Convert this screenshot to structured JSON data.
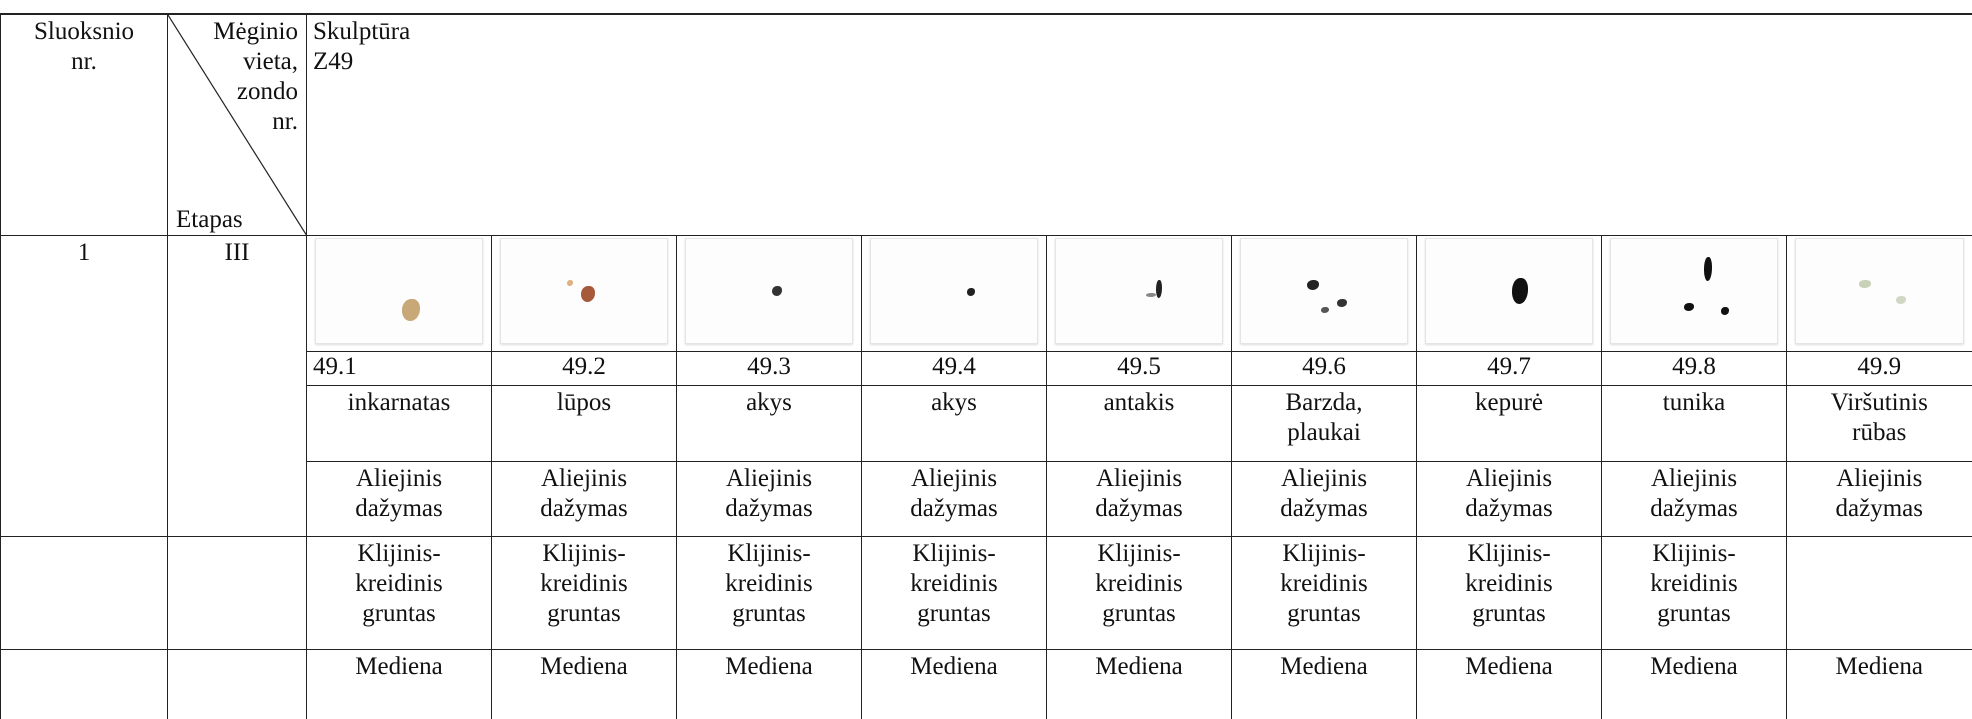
{
  "header": {
    "layer_no": "Sluoksnio nr.",
    "sample_location": "Mėginio vieta, zondo nr.",
    "stage": "Etapas",
    "object_type": "Skulptūra",
    "object_id": "Z49"
  },
  "layer_row": {
    "layer": "1",
    "stage": "III"
  },
  "samples": [
    {
      "id": "49.1",
      "location": "inkarnatas",
      "paint": "Aliejinis dažymas",
      "ground": "Klijinis-kreidinis gruntas",
      "base": "Mediena"
    },
    {
      "id": "49.2",
      "location": "lūpos",
      "paint": "Aliejinis dažymas",
      "ground": "Klijinis-kreidinis gruntas",
      "base": "Mediena"
    },
    {
      "id": "49.3",
      "location": "akys",
      "paint": "Aliejinis dažymas",
      "ground": "Klijinis-kreidinis gruntas",
      "base": "Mediena"
    },
    {
      "id": "49.4",
      "location": "akys",
      "paint": "Aliejinis dažymas",
      "ground": "Klijinis-kreidinis gruntas",
      "base": "Mediena"
    },
    {
      "id": "49.5",
      "location": "antakis",
      "paint": "Aliejinis dažymas",
      "ground": "Klijinis-kreidinis gruntas",
      "base": "Mediena"
    },
    {
      "id": "49.6",
      "location": "Barzda, plaukai",
      "paint": "Aliejinis dažymas",
      "ground": "Klijinis-kreidinis gruntas",
      "base": "Mediena"
    },
    {
      "id": "49.7",
      "location": "kepurė",
      "paint": "Aliejinis dažymas",
      "ground": "Klijinis-kreidinis gruntas",
      "base": "Mediena"
    },
    {
      "id": "49.8",
      "location": "tunika",
      "paint": "Aliejinis dažymas",
      "ground": "Klijinis-kreidinis gruntas",
      "base": "Mediena"
    },
    {
      "id": "49.9",
      "location": "Viršutinis rūbas",
      "paint": "Aliejinis dažymas",
      "base": "Mediena"
    }
  ]
}
